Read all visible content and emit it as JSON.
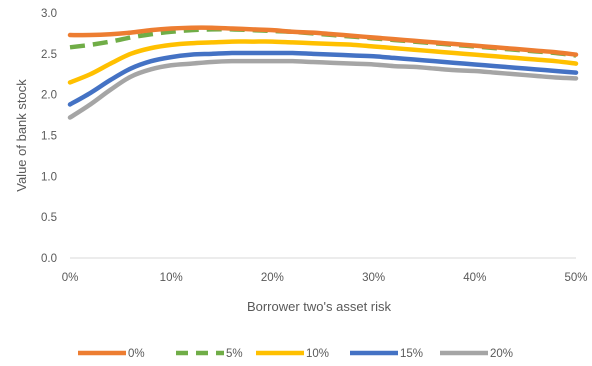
{
  "chart_data": {
    "type": "line",
    "title": "",
    "xlabel": "Borrower two's asset risk",
    "ylabel": "Value of bank stock",
    "xlim": [
      0,
      50
    ],
    "ylim": [
      0,
      3.0
    ],
    "x_ticks": [
      "0%",
      "10%",
      "20%",
      "30%",
      "40%",
      "50%"
    ],
    "y_ticks": [
      "0.0",
      "0.5",
      "1.0",
      "1.5",
      "2.0",
      "2.5",
      "3.0"
    ],
    "grid": false,
    "legend_position": "bottom",
    "series": [
      {
        "name": "0%",
        "color": "#ED7D31",
        "dash": "solid",
        "x": [
          0,
          2,
          4,
          6,
          8,
          10,
          12,
          14,
          16,
          18,
          20,
          22,
          24,
          26,
          28,
          30,
          32,
          34,
          36,
          38,
          40,
          42,
          44,
          46,
          48,
          50
        ],
        "values": [
          2.73,
          2.73,
          2.74,
          2.76,
          2.79,
          2.81,
          2.82,
          2.82,
          2.81,
          2.8,
          2.79,
          2.77,
          2.76,
          2.74,
          2.72,
          2.7,
          2.68,
          2.66,
          2.64,
          2.62,
          2.6,
          2.58,
          2.56,
          2.54,
          2.52,
          2.49
        ]
      },
      {
        "name": "5%",
        "color": "#70AD47",
        "dash": "dashed",
        "x": [
          0,
          2,
          4,
          6,
          8,
          10,
          12,
          14,
          16,
          18,
          20,
          22,
          24,
          26,
          28,
          30,
          32,
          34,
          36,
          38,
          40,
          42,
          44,
          46,
          48,
          50
        ],
        "values": [
          2.58,
          2.61,
          2.65,
          2.7,
          2.74,
          2.77,
          2.79,
          2.8,
          2.8,
          2.79,
          2.78,
          2.77,
          2.75,
          2.73,
          2.71,
          2.69,
          2.67,
          2.65,
          2.63,
          2.61,
          2.59,
          2.57,
          2.55,
          2.53,
          2.51,
          2.48
        ]
      },
      {
        "name": "10%",
        "color": "#FFC000",
        "dash": "solid",
        "x": [
          0,
          2,
          4,
          6,
          8,
          10,
          12,
          14,
          16,
          18,
          20,
          22,
          24,
          26,
          28,
          30,
          32,
          34,
          36,
          38,
          40,
          42,
          44,
          46,
          48,
          50
        ],
        "values": [
          2.15,
          2.25,
          2.38,
          2.5,
          2.57,
          2.61,
          2.63,
          2.64,
          2.65,
          2.65,
          2.65,
          2.64,
          2.63,
          2.62,
          2.61,
          2.59,
          2.57,
          2.55,
          2.53,
          2.51,
          2.49,
          2.47,
          2.45,
          2.43,
          2.41,
          2.38
        ]
      },
      {
        "name": "15%",
        "color": "#4472C4",
        "dash": "solid",
        "x": [
          0,
          2,
          4,
          6,
          8,
          10,
          12,
          14,
          16,
          18,
          20,
          22,
          24,
          26,
          28,
          30,
          32,
          34,
          36,
          38,
          40,
          42,
          44,
          46,
          48,
          50
        ],
        "values": [
          1.88,
          2.02,
          2.18,
          2.32,
          2.41,
          2.46,
          2.49,
          2.5,
          2.51,
          2.51,
          2.51,
          2.51,
          2.5,
          2.49,
          2.48,
          2.47,
          2.45,
          2.43,
          2.41,
          2.39,
          2.37,
          2.35,
          2.33,
          2.31,
          2.29,
          2.27
        ]
      },
      {
        "name": "20%",
        "color": "#A5A5A5",
        "dash": "solid",
        "x": [
          0,
          2,
          4,
          6,
          8,
          10,
          12,
          14,
          16,
          18,
          20,
          22,
          24,
          26,
          28,
          30,
          32,
          34,
          36,
          38,
          40,
          42,
          44,
          46,
          48,
          50
        ],
        "values": [
          1.72,
          1.88,
          2.06,
          2.22,
          2.31,
          2.36,
          2.38,
          2.4,
          2.41,
          2.41,
          2.41,
          2.41,
          2.4,
          2.39,
          2.38,
          2.37,
          2.35,
          2.34,
          2.32,
          2.3,
          2.29,
          2.27,
          2.25,
          2.23,
          2.21,
          2.2
        ]
      }
    ]
  }
}
